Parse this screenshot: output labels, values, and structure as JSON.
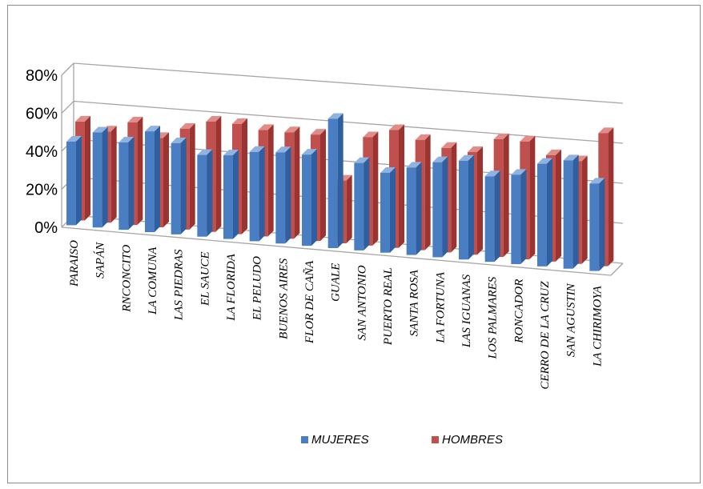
{
  "colors": {
    "mujeres": "#4a7ec2",
    "mujeres_dark": "#2f5f9e",
    "mujeres_light": "#8fb2e0",
    "hombres": "#c0504d",
    "hombres_dark": "#9b3431",
    "hombres_light": "#e08c89",
    "grid": "#a6a6a6"
  },
  "chart_data": {
    "type": "bar",
    "variant": "3d-clustered-column",
    "title": "",
    "xlabel": "",
    "ylabel": "",
    "ylim": [
      0,
      0.8
    ],
    "yticks": [
      "0%",
      "20%",
      "40%",
      "60%",
      "80%"
    ],
    "grid": true,
    "legend_position": "bottom",
    "categories": [
      "PARAISO",
      "SAPÁN",
      "RNCONCITO",
      "LA COMUNA",
      "LAS PIEDRAS",
      "EL SAUCE",
      "LA FLORIDA",
      "EL PELUDO",
      "BUENOS AIRES",
      "FLOR DE CAÑA",
      "GUALE",
      "SAN ANTONIO",
      "PUERTO REAL",
      "SANTA ROSA",
      "LA FORTUNA",
      "LAS IGUANAS",
      "LOS PALMARES",
      "RONCADOR",
      "CERRO DE LA CRUZ",
      "SAN AGUSTIN",
      "LA CHIRIMOYA"
    ],
    "series": [
      {
        "name": "MUJERES",
        "values": [
          0.44,
          0.5,
          0.46,
          0.53,
          0.48,
          0.43,
          0.44,
          0.47,
          0.48,
          0.48,
          0.68,
          0.46,
          0.42,
          0.46,
          0.5,
          0.52,
          0.45,
          0.47,
          0.54,
          0.57,
          0.46
        ]
      },
      {
        "name": "HOMBRES",
        "values": [
          0.52,
          0.48,
          0.54,
          0.47,
          0.53,
          0.58,
          0.58,
          0.56,
          0.56,
          0.56,
          0.33,
          0.57,
          0.62,
          0.58,
          0.55,
          0.54,
          0.62,
          0.62,
          0.56,
          0.54,
          0.7
        ]
      }
    ]
  }
}
